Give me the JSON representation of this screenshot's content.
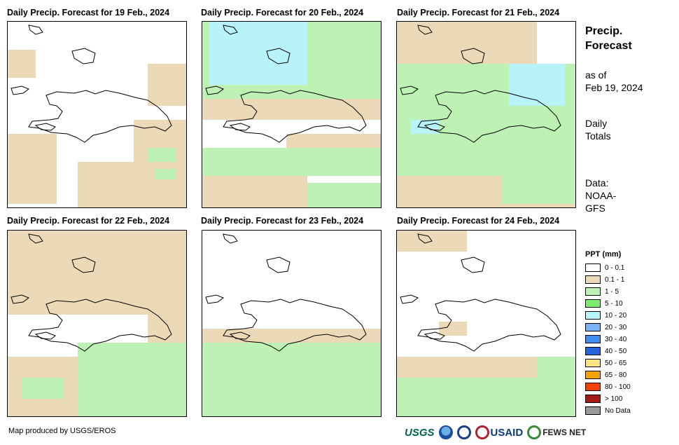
{
  "panels": [
    {
      "title": "Daily Precip. Forecast for 19 Feb., 2024",
      "tan": [
        [
          0,
          40,
          40,
          40
        ],
        [
          0,
          160,
          70,
          100
        ],
        [
          180,
          140,
          77,
          60
        ],
        [
          100,
          200,
          157,
          70
        ],
        [
          200,
          60,
          57,
          60
        ]
      ],
      "green": [
        [
          200,
          180,
          40,
          20
        ],
        [
          210,
          210,
          30,
          15
        ]
      ],
      "blue": []
    },
    {
      "title": "Daily Precip. Forecast for 20 Feb., 2024",
      "tan": [
        [
          0,
          100,
          257,
          40
        ],
        [
          0,
          220,
          150,
          47
        ],
        [
          120,
          160,
          137,
          40
        ]
      ],
      "green": [
        [
          0,
          0,
          257,
          110
        ],
        [
          0,
          180,
          257,
          40
        ],
        [
          150,
          230,
          107,
          37
        ]
      ],
      "blue": [
        [
          10,
          0,
          140,
          90
        ]
      ]
    },
    {
      "title": "Daily Precip. Forecast for 21 Feb., 2024",
      "tan": [
        [
          0,
          0,
          200,
          80
        ],
        [
          0,
          200,
          257,
          67
        ]
      ],
      "green": [
        [
          0,
          60,
          257,
          160
        ],
        [
          150,
          180,
          107,
          80
        ]
      ],
      "blue": [
        [
          160,
          60,
          80,
          60
        ],
        [
          20,
          140,
          40,
          20
        ]
      ]
    },
    {
      "title": "Daily Precip. Forecast for 22 Feb., 2024",
      "tan": [
        [
          0,
          0,
          257,
          120
        ],
        [
          0,
          180,
          120,
          87
        ],
        [
          200,
          120,
          57,
          147
        ]
      ],
      "green": [
        [
          100,
          160,
          157,
          107
        ],
        [
          20,
          210,
          60,
          30
        ]
      ],
      "blue": []
    },
    {
      "title": "Daily Precip. Forecast for 23 Feb., 2024",
      "tan": [
        [
          0,
          140,
          257,
          40
        ],
        [
          40,
          200,
          217,
          30
        ]
      ],
      "green": [
        [
          0,
          160,
          257,
          107
        ]
      ],
      "blue": []
    },
    {
      "title": "Daily Precip. Forecast for 24 Feb., 2024",
      "tan": [
        [
          0,
          0,
          100,
          30
        ],
        [
          60,
          130,
          40,
          20
        ],
        [
          0,
          180,
          257,
          40
        ],
        [
          20,
          250,
          200,
          17
        ]
      ],
      "green": [
        [
          0,
          210,
          257,
          57
        ],
        [
          200,
          180,
          57,
          30
        ]
      ],
      "blue": []
    }
  ],
  "side": {
    "title_line1": "Precip.",
    "title_line2": "Forecast",
    "asof_line1": "as of",
    "asof_line2": "Feb 19, 2024",
    "totals_line1": "Daily",
    "totals_line2": "Totals",
    "data_line1": "Data:",
    "data_line2": "NOAA-",
    "data_line3": "GFS"
  },
  "legend": {
    "title": "PPT (mm)",
    "items": [
      {
        "label": "0 - 0.1",
        "color": "#ffffff"
      },
      {
        "label": "0.1 - 1",
        "color": "#ecd9b8"
      },
      {
        "label": "1 - 5",
        "color": "#bdf2b4"
      },
      {
        "label": "5 - 10",
        "color": "#7ded6e"
      },
      {
        "label": "10 - 20",
        "color": "#b8f2fa"
      },
      {
        "label": "20 - 30",
        "color": "#78b5f5"
      },
      {
        "label": "30 - 40",
        "color": "#3f8ef0"
      },
      {
        "label": "40 - 50",
        "color": "#2663d9"
      },
      {
        "label": "50 - 65",
        "color": "#fbe483"
      },
      {
        "label": "65 - 80",
        "color": "#f5a300"
      },
      {
        "label": "80 - 100",
        "color": "#ee4400"
      },
      {
        "label": "> 100",
        "color": "#a41a14"
      },
      {
        "label": "No Data",
        "color": "#9a9a9a"
      }
    ]
  },
  "footer": {
    "credit": "Map produced by USGS/EROS",
    "logos": {
      "usgs": "USGS",
      "usaid": "USAID",
      "fews": "FEWS NET"
    }
  },
  "colors": {
    "tan": "#ecd9b8",
    "green": "#bdf2b4",
    "bright_green": "#7ded6e",
    "blue": "#b8f2fa"
  }
}
